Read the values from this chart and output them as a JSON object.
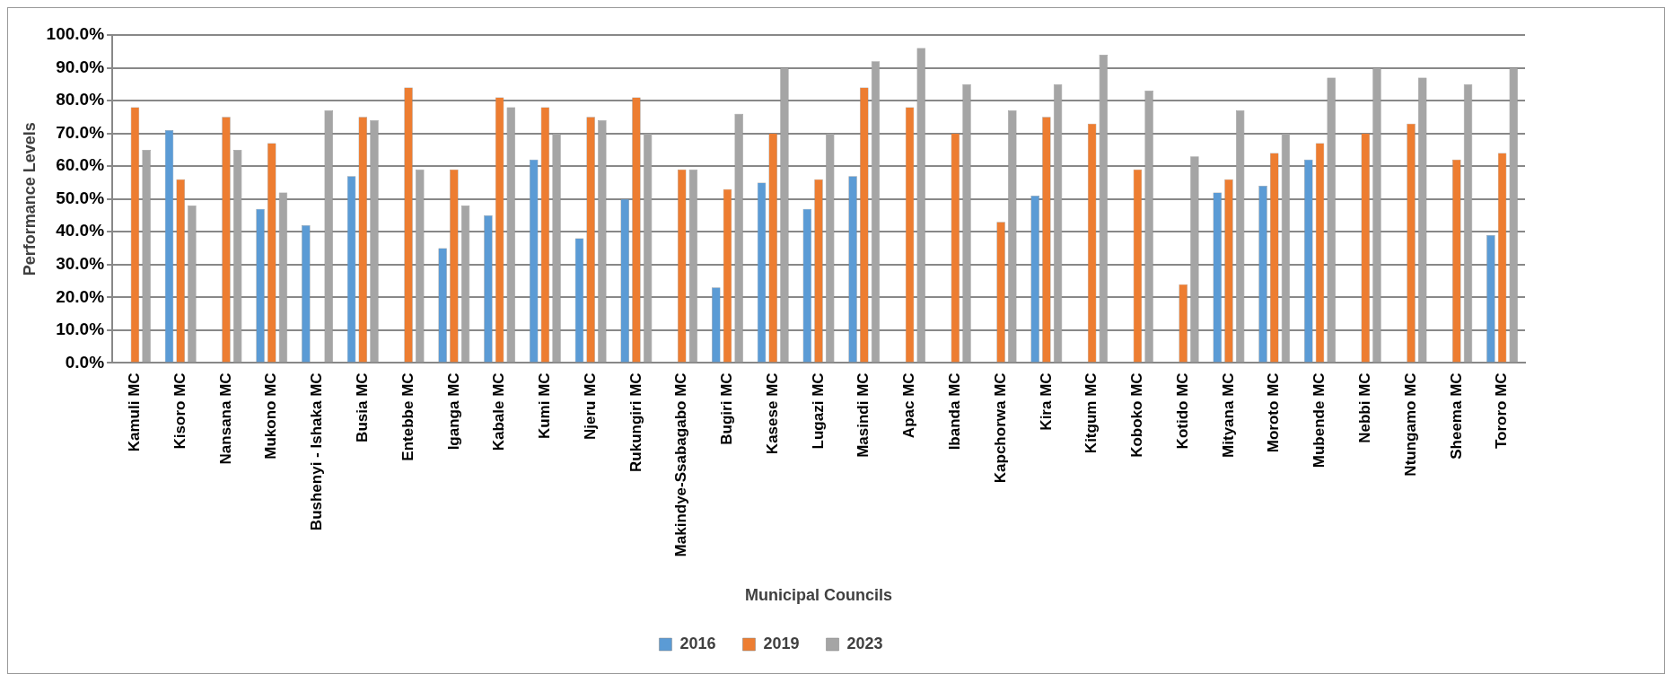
{
  "chart_data": {
    "type": "bar",
    "xlabel": "Municipal Councils",
    "ylabel": "Performance Levels",
    "categories": [
      "Kamuli MC",
      "Kisoro MC",
      "Nansana MC",
      "Mukono MC",
      "Bushenyi - Ishaka MC",
      "Busia MC",
      "Entebbe MC",
      "Iganga MC",
      "Kabale MC",
      "Kumi MC",
      "Njeru MC",
      "Rukungiri MC",
      "Makindye-Ssabagabo MC",
      "Bugiri MC",
      "Kasese MC",
      "Lugazi MC",
      "Masindi MC",
      "Apac MC",
      "Ibanda MC",
      "Kapchorwa MC",
      "Kira MC",
      "Kitgum MC",
      "Koboko MC",
      "Kotido MC",
      "Mityana MC",
      "Moroto MC",
      "Mubende MC",
      "Nebbi MC",
      "Ntungamo MC",
      "Sheema MC",
      "Tororo MC"
    ],
    "series": [
      {
        "name": "2016",
        "color": "#5b9bd5",
        "values": [
          0,
          71,
          0,
          47,
          42,
          57,
          0,
          35,
          45,
          62,
          38,
          50,
          0,
          23,
          55,
          47,
          57,
          0,
          0,
          0,
          51,
          0,
          0,
          0,
          52,
          54,
          62,
          0,
          0,
          0,
          39
        ]
      },
      {
        "name": "2019",
        "color": "#ed7d31",
        "values": [
          78,
          56,
          75,
          67,
          0,
          75,
          84,
          59,
          81,
          78,
          75,
          81,
          59,
          53,
          70,
          56,
          84,
          78,
          70,
          43,
          75,
          73,
          59,
          24,
          56,
          64,
          67,
          70,
          73,
          62,
          64
        ]
      },
      {
        "name": "2023",
        "color": "#a5a5a5",
        "values": [
          65,
          48,
          65,
          52,
          77,
          74,
          59,
          48,
          78,
          70,
          74,
          70,
          59,
          76,
          90,
          70,
          92,
          96,
          85,
          77,
          85,
          94,
          83,
          63,
          77,
          70,
          87,
          90,
          87,
          85,
          90
        ]
      }
    ],
    "ylim": [
      0,
      100
    ],
    "yticks": [
      {
        "value": 0,
        "label": "0.0%"
      },
      {
        "value": 10,
        "label": "10.0%"
      },
      {
        "value": 20,
        "label": "20.0%"
      },
      {
        "value": 30,
        "label": "30.0%"
      },
      {
        "value": 40,
        "label": "40.0%"
      },
      {
        "value": 50,
        "label": "50.0%"
      },
      {
        "value": 60,
        "label": "60.0%"
      },
      {
        "value": 70,
        "label": "70.0%"
      },
      {
        "value": 80,
        "label": "80.0%"
      },
      {
        "value": 90,
        "label": "90.0%"
      },
      {
        "value": 100,
        "label": "100.0%"
      }
    ],
    "grid": "y",
    "legend": "bottom"
  }
}
